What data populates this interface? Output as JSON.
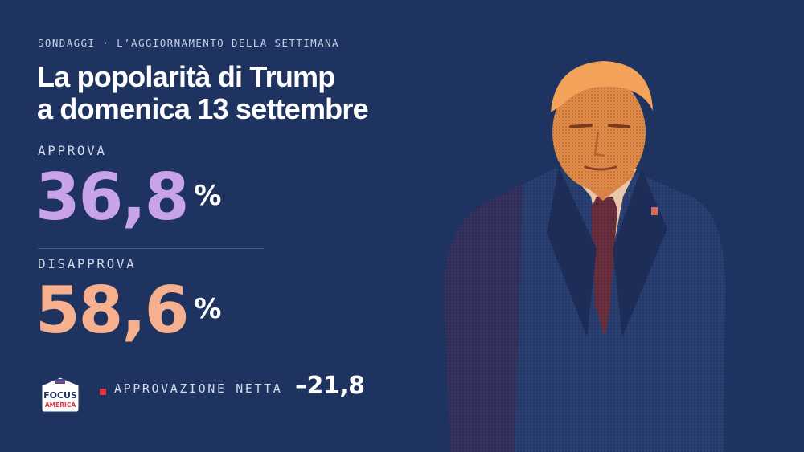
{
  "header": {
    "kicker": "SONDAGGI · L’AGGIORNAMENTO DELLA SETTIMANA",
    "title_line1": "La popolarità di Trump",
    "title_line2": "a domenica 13 settembre"
  },
  "approve": {
    "label": "APPROVA",
    "value": "36,8",
    "unit": "%"
  },
  "disapprove": {
    "label": "DISAPPROVA",
    "value": "58,6",
    "unit": "%"
  },
  "net": {
    "label": "APPROVAZIONE NETTA",
    "value": "–21,8"
  },
  "brand": {
    "line1": "FOCUS",
    "line2": "AMERICA"
  },
  "colors": {
    "background": "#1f3360",
    "approve": "#c8a3e9",
    "disapprove": "#f6b08e",
    "accent_red": "#e03344"
  }
}
